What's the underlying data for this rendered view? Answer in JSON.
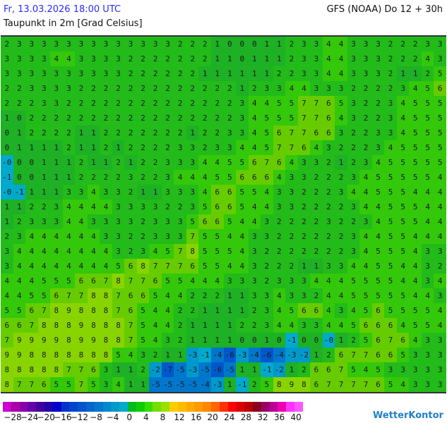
{
  "header": {
    "date": "Fr, 13.03.2026 18:00 UTC",
    "model": "GFS (NOAA) Do 12 + 30h",
    "parameter": "Taupunkt in 2m [Grad Celsius]"
  },
  "map": {
    "rows": [
      "2 3 3 3 3 3 3 3 3 3 3 3 3 3 2 2 2 1 0 0 0 1 1 2 3 3 4 4 3 3 3 2 2 2 3 3",
      "3 3 3 3 4 4 3 3 3 3 2 2 2 2 2 2 2 1 1 0 1 1 1 2 3 3 4 4 3 3 3 2 2 2 4 3",
      "3 3 3 3 3 3 3 3 3 3 2 2 2 2 2 2 1 1 1 1 1 1 2 2 3 3 4 4 3 3 3 2 1 1 2 5",
      "2 2 3 3 3 3 2 2 2 2 2 2 2 2 2 2 2 2 2 1 2 3 3 4 4 3 3 3 2 2 2 2 3 4 5 6",
      "2 2 2 3 3 2 2 2 2 2 2 2 2 2 2 2 2 2 2 3 4 4 5 5 7 7 6 5 3 2 2 3 4 5 5 5",
      "1 0 2 2 2 2 2 2 2 2 2 2 2 2 2 2 2 2 2 3 4 5 5 5 7 7 6 4 3 2 2 3 4 5 5 5",
      "0 1 2 2 2 2 1 1 2 2 2 2 2 2 2 1 2 2 3 3 4 5 6 7 7 6 6 3 2 2 3 3 4 5 5 5",
      "0 1 1 1 1 2 1 1 2 1 2 2 2 2 3 3 2 3 3 4 4 5 7 7 6 4 3 2 2 2 3 4 5 5 5 5",
      "-0 0 0 1 1 1 2 1 1 2 1 2 2 3 3 3 4 4 5 5 6 7 6 4 3 3 2 1 2 3 4 5 5 5 5 5",
      "-1 0 0 1 1 1 2 2 2 2 3 2 2 3 4 4 4 5 5 6 6 6 4 3 3 2 2 2 3 4 5 5 5 5 5 4",
      "-0 -1 1 1 1 3 3 4 3 3 2 1 1 3 3 3 4 6 6 5 5 4 3 3 2 2 2 3 4 4 5 5 5 4 4 4",
      "1 1 2 2 3 4 4 4 4 3 3 3 3 2 2 3 5 6 6 5 4 4 3 3 2 2 2 2 3 4 4 5 5 5 4 4",
      "1 2 3 3 3 4 4 3 3 3 3 2 3 3 3 5 6 6 5 4 4 3 2 2 2 2 3 2 2 3 4 5 5 5 4 4",
      "2 3 4 4 4 4 4 4 3 3 2 2 3 3 3 7 5 5 4 4 3 3 2 2 2 2 2 2 3 4 4 5 5 4 4 4",
      "3 4 4 4 4 4 4 4 4 3 2 3 4 5 7 8 5 5 5 4 3 2 2 2 2 2 2 2 3 4 5 5 5 4 3 3",
      "3 4 4 4 4 4 4 4 4 5 6 8 7 7 7 6 5 5 4 4 3 2 2 2 1 1 3 3 4 4 5 5 4 4 3 2",
      "4 4 4 5 5 5 6 6 7 8 7 7 6 5 5 4 4 4 3 3 3 2 3 3 3 4 4 4 5 5 5 5 4 4 3 4",
      "4 4 5 5 6 7 7 8 8 7 6 6 5 4 4 2 2 2 1 1 3 3 4 3 3 2 4 4 5 5 5 5 5 4 4 3",
      "5 5 6 7 8 9 8 8 8 7 6 5 4 4 2 2 1 1 1 1 2 3 4 5 6 6 4 3 4 5 6 5 5 5 5 4",
      "6 6 7 8 8 8 9 8 8 8 7 5 4 4 2 1 1 1 1 2 2 3 4 4 3 3 4 4 5 6 6 6 4 5 5 4",
      "7 9 9 9 9 8 9 9 8 8 7 5 4 3 2 1 1 1 1 0 0 1 0 -1 0 0 -0 1 2 5 6 7 6 4 3 3",
      "9 9 8 8 8 8 8 8 8 5 4 3 2 1 1 -3 -1 -4 -6 -3 -4 -6 -4 -3 -2 1 2 6 7 7 6 6 5 3 3 3",
      "8 8 8 8 8 7 7 6 3 1 1 2 -2 -7 -5 -3 -5 -6 -5 1 1 -1 -2 1 2 6 6 7 5 4 5 3 3 3 3 3",
      "8 7 7 6 5 5 7 5 3 4 1 1 -5 -5 -5 -5 -4 -3 1 -1 2 5 8 9 8 6 7 7 7 7 6 5 4 3 3 3"
    ]
  },
  "legend": {
    "colors": [
      "#cc00cc",
      "#aa00aa",
      "#8800aa",
      "#6600aa",
      "#440099",
      "#2200aa",
      "#0000cc",
      "#0033cc",
      "#0044cc",
      "#0055cc",
      "#0066cc",
      "#0077cc",
      "#0088cc",
      "#0099cc",
      "#00aacc",
      "#00bb22",
      "#11cc00",
      "#33dd00",
      "#77dd00",
      "#99e000",
      "#ffcc00",
      "#ffbb00",
      "#ffaa00",
      "#ff9900",
      "#ff8800",
      "#ff6600",
      "#ff3300",
      "#ff0000",
      "#dd0000",
      "#bb0000",
      "#880022",
      "#990066",
      "#bb0099",
      "#ee00aa",
      "#ff33ff",
      "#ff55ff"
    ],
    "ticks": [
      "−28",
      "−24",
      "−20",
      "−16",
      "−12",
      "−8",
      "−4",
      "0",
      "4",
      "8",
      "12",
      "16",
      "20",
      "24",
      "28",
      "32",
      "36",
      "40"
    ]
  },
  "logo": "WetterKontor"
}
